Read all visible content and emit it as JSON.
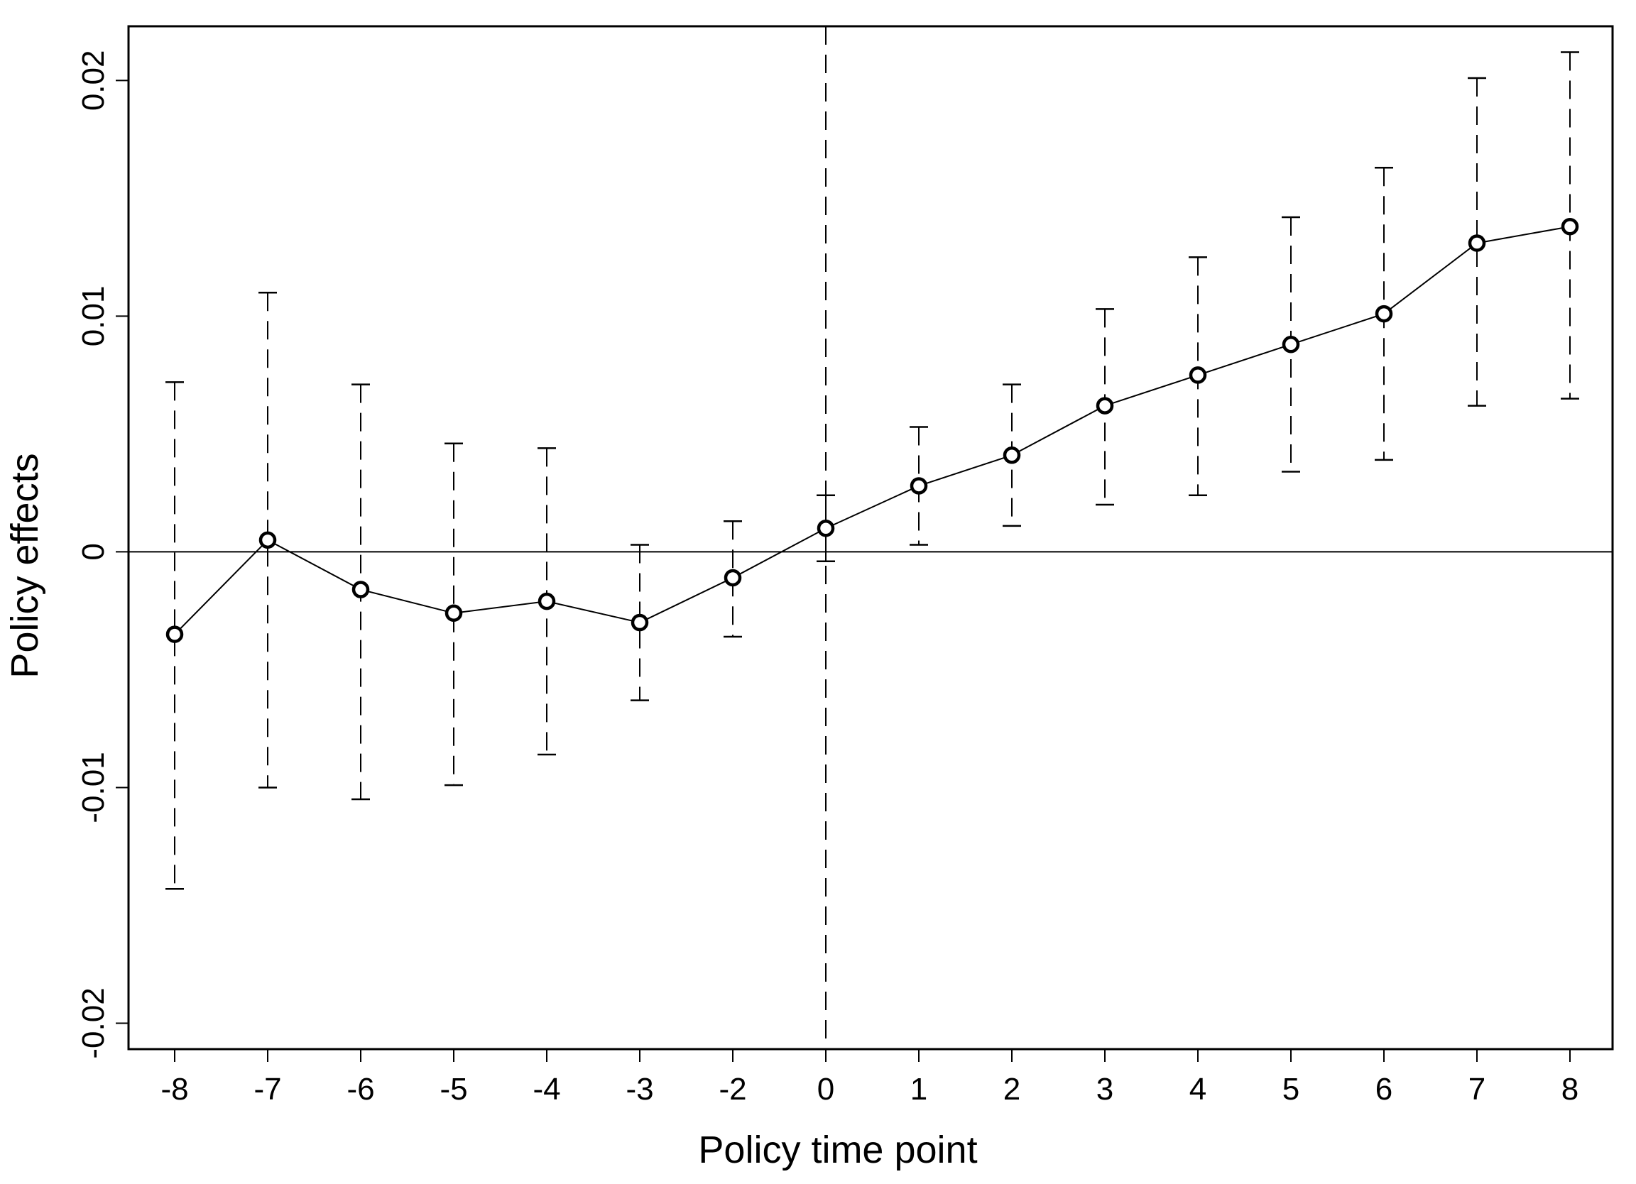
{
  "chart_data": {
    "type": "line",
    "title": "",
    "xlabel": "Policy time point",
    "ylabel": "Policy effects",
    "categories": [
      "-8",
      "-7",
      "-6",
      "-5",
      "-4",
      "-3",
      "-2",
      "0",
      "1",
      "2",
      "3",
      "4",
      "5",
      "6",
      "7",
      "8"
    ],
    "y_ticks": [
      {
        "value": -0.02,
        "label": "-0.02"
      },
      {
        "value": -0.01,
        "label": "-0.01"
      },
      {
        "value": 0,
        "label": "0"
      },
      {
        "value": 0.01,
        "label": "0.01"
      },
      {
        "value": 0.02,
        "label": "0.02"
      }
    ],
    "ylim": [
      -0.0211,
      0.0223
    ],
    "reference_lines": {
      "horizontal_y": 0,
      "vertical_at_category": "0"
    },
    "series": [
      {
        "estimate": [
          -0.0035,
          0.0005,
          -0.0016,
          -0.0026,
          -0.0021,
          -0.003,
          -0.0011,
          0.001,
          0.0028,
          0.0041,
          0.0062,
          0.0075,
          0.0088,
          0.0101,
          0.0131,
          0.0138
        ],
        "ci_lower": [
          -0.0143,
          -0.01,
          -0.0105,
          -0.0099,
          -0.0086,
          -0.0063,
          -0.0036,
          -0.0004,
          0.0003,
          0.0011,
          0.002,
          0.0024,
          0.0034,
          0.0039,
          0.0062,
          0.0065
        ],
        "ci_upper": [
          0.0072,
          0.011,
          0.0071,
          0.0046,
          0.0044,
          0.0003,
          0.0013,
          0.0024,
          0.0053,
          0.0071,
          0.0103,
          0.0125,
          0.0142,
          0.0163,
          0.0201,
          0.0212
        ]
      }
    ],
    "grid": false,
    "legend": "none",
    "colors": {
      "line": "#000000",
      "background": "#ffffff"
    }
  }
}
